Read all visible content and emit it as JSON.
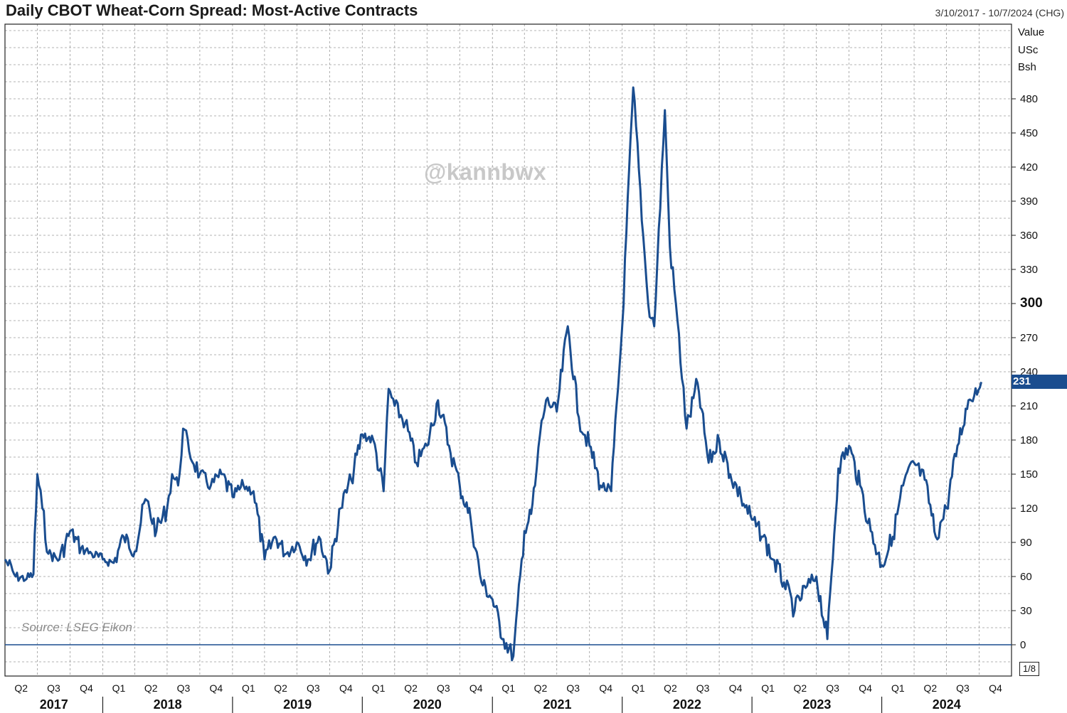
{
  "header": {
    "title": "Daily CBOT Wheat-Corn Spread: Most-Active Contracts",
    "date_range": "3/10/2017 - 10/7/2024 (CHG)"
  },
  "watermark": "@kannbwx",
  "source": "Source: LSEG Eikon",
  "axis": {
    "unit_lines": [
      "Value",
      "USc",
      "Bsh"
    ],
    "scale_label": "1/8",
    "last_value_label": "231"
  },
  "colors": {
    "line": "#1a4d8f",
    "grid": "#9a9a9a",
    "badge": "#1a4d8f"
  },
  "chart_data": {
    "type": "line",
    "title": "Daily CBOT Wheat-Corn Spread: Most-Active Contracts",
    "xlabel": "",
    "ylabel": "Value USc Bsh",
    "ylim": [
      -15,
      540
    ],
    "y_ticks": [
      0,
      30,
      60,
      90,
      120,
      150,
      180,
      210,
      240,
      270,
      300,
      330,
      360,
      390,
      420,
      450,
      480
    ],
    "x_range": [
      "2017-04-01",
      "2024-12-31"
    ],
    "quarter_labels": [
      "Q2",
      "Q3",
      "Q4",
      "Q1",
      "Q2",
      "Q3",
      "Q4",
      "Q1",
      "Q2",
      "Q3",
      "Q4",
      "Q1",
      "Q2",
      "Q3",
      "Q4",
      "Q1",
      "Q2",
      "Q3",
      "Q4",
      "Q1",
      "Q2",
      "Q3",
      "Q4",
      "Q1",
      "Q2",
      "Q3",
      "Q4",
      "Q1",
      "Q2",
      "Q3",
      "Q4"
    ],
    "year_labels": [
      "2017",
      "2018",
      "2019",
      "2020",
      "2021",
      "2022",
      "2023",
      "2024"
    ],
    "grid": true,
    "last_value": 231,
    "series": [
      {
        "x": [
          "2017-04-01",
          "2017-05-01",
          "2017-06-01",
          "2017-06-20",
          "2017-07-01",
          "2017-07-15",
          "2017-08-01",
          "2017-09-01",
          "2017-10-01",
          "2017-11-01",
          "2017-12-01",
          "2018-01-01",
          "2018-02-01",
          "2018-03-01",
          "2018-04-01",
          "2018-05-01",
          "2018-06-01",
          "2018-07-01",
          "2018-07-15",
          "2018-08-01",
          "2018-08-15",
          "2018-09-01",
          "2018-10-01",
          "2018-11-01",
          "2018-12-01",
          "2019-01-01",
          "2019-02-01",
          "2019-03-01",
          "2019-04-01",
          "2019-05-01",
          "2019-06-01",
          "2019-07-01",
          "2019-08-01",
          "2019-09-01",
          "2019-10-01",
          "2019-11-01",
          "2019-12-01",
          "2020-01-01",
          "2020-02-01",
          "2020-03-01",
          "2020-03-15",
          "2020-04-01",
          "2020-05-01",
          "2020-06-01",
          "2020-07-01",
          "2020-08-01",
          "2020-09-01",
          "2020-10-01",
          "2020-11-01",
          "2020-12-01",
          "2021-01-01",
          "2021-02-01",
          "2021-03-01",
          "2021-04-01",
          "2021-04-20",
          "2021-05-01",
          "2021-05-15",
          "2021-06-01",
          "2021-07-01",
          "2021-08-01",
          "2021-09-01",
          "2021-10-01",
          "2021-11-01",
          "2021-12-01",
          "2022-01-01",
          "2022-02-01",
          "2022-03-01",
          "2022-03-15",
          "2022-04-01",
          "2022-05-01",
          "2022-05-15",
          "2022-06-01",
          "2022-07-01",
          "2022-08-01",
          "2022-09-01",
          "2022-10-01",
          "2022-11-01",
          "2022-12-01",
          "2023-01-01",
          "2023-02-01",
          "2023-03-01",
          "2023-04-01",
          "2023-05-01",
          "2023-06-01",
          "2023-07-01",
          "2023-08-01",
          "2023-09-01",
          "2023-10-01",
          "2023-11-01",
          "2023-12-01",
          "2024-01-01",
          "2024-02-01",
          "2024-03-01",
          "2024-04-01",
          "2024-05-01",
          "2024-06-01",
          "2024-07-01",
          "2024-08-01",
          "2024-09-01",
          "2024-10-07"
        ],
        "y": [
          75,
          60,
          58,
          62,
          150,
          120,
          80,
          75,
          100,
          85,
          80,
          75,
          72,
          95,
          82,
          128,
          100,
          120,
          150,
          140,
          190,
          170,
          150,
          140,
          150,
          130,
          140,
          135,
          75,
          95,
          80,
          90,
          75,
          95,
          65,
          120,
          145,
          185,
          180,
          135,
          225,
          210,
          195,
          160,
          175,
          215,
          175,
          140,
          110,
          55,
          40,
          5,
          -10,
          100,
          115,
          140,
          185,
          215,
          205,
          280,
          200,
          175,
          140,
          135,
          280,
          490,
          360,
          300,
          280,
          470,
          350,
          300,
          190,
          230,
          160,
          180,
          150,
          130,
          110,
          95,
          75,
          55,
          30,
          50,
          60,
          5,
          155,
          175,
          140,
          100,
          70,
          95,
          140,
          160,
          145,
          95,
          120,
          175,
          215,
          231
        ]
      }
    ]
  }
}
